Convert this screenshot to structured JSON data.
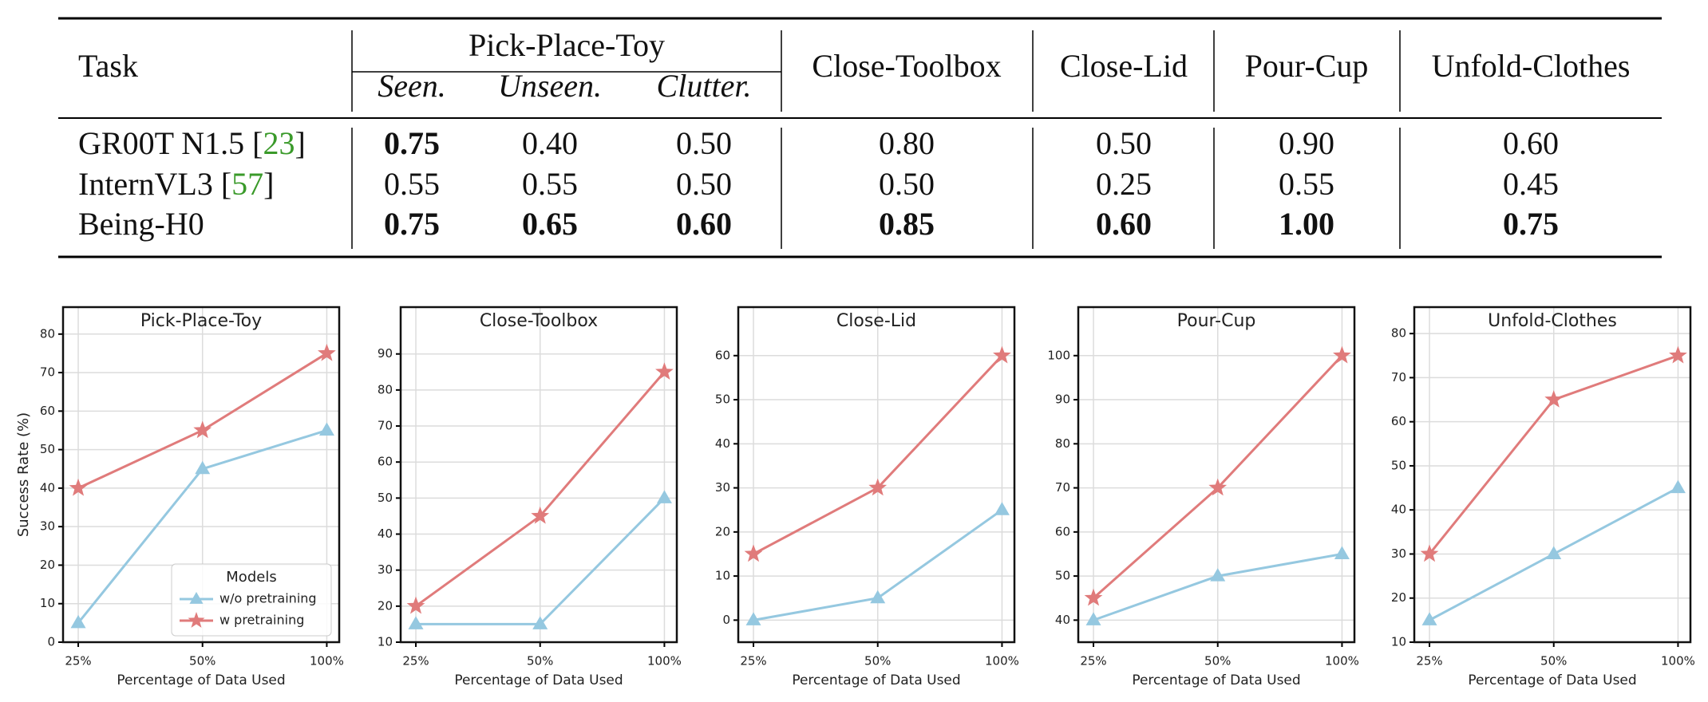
{
  "table": {
    "header": {
      "task": "Task",
      "group": "Pick-Place-Toy",
      "sub": [
        "Seen.",
        "Unseen.",
        "Clutter."
      ],
      "tasks": [
        "Close-Toolbox",
        "Close-Lid",
        "Pour-Cup",
        "Unfold-Clothes"
      ]
    },
    "rows": [
      {
        "model": "GR00T N1.5",
        "cite": [
          "[",
          "23",
          "]"
        ],
        "values": [
          "0.75",
          "0.40",
          "0.50",
          "0.80",
          "0.50",
          "0.90",
          "0.60"
        ],
        "bold": [
          true,
          false,
          false,
          false,
          false,
          false,
          false
        ]
      },
      {
        "model": "InternVL3",
        "cite": [
          "[",
          "57",
          "]"
        ],
        "values": [
          "0.55",
          "0.55",
          "0.50",
          "0.50",
          "0.25",
          "0.55",
          "0.45"
        ],
        "bold": [
          false,
          false,
          false,
          false,
          false,
          false,
          false
        ]
      },
      {
        "model": "Being-H0",
        "values": [
          "0.75",
          "0.65",
          "0.60",
          "0.85",
          "0.60",
          "1.00",
          "0.75"
        ],
        "bold": [
          true,
          true,
          true,
          true,
          true,
          true,
          true
        ]
      }
    ],
    "cite_color": "#3a9a2a"
  },
  "chart_data": [
    {
      "type": "line",
      "title": "Pick-Place-Toy",
      "xlabel": "Percentage of Data Used",
      "ylabel": "Success Rate (%)",
      "categories": [
        "25%",
        "50%",
        "100%"
      ],
      "ylim": [
        0,
        87
      ],
      "yticks": [
        0,
        10,
        20,
        30,
        40,
        50,
        60,
        70,
        80
      ],
      "grid": true,
      "series": [
        {
          "name": "w/o pretraining",
          "color": "#95c8e0",
          "marker": "triangle",
          "values": [
            5,
            45,
            55
          ]
        },
        {
          "name": "w pretraining",
          "color": "#e07b7b",
          "marker": "star",
          "values": [
            40,
            55,
            75
          ]
        }
      ],
      "legend": {
        "title": "Models",
        "loc": "lower right"
      }
    },
    {
      "type": "line",
      "title": "Close-Toolbox",
      "xlabel": "Percentage of Data Used",
      "categories": [
        "25%",
        "50%",
        "100%"
      ],
      "ylim": [
        10,
        103
      ],
      "yticks": [
        10,
        20,
        30,
        40,
        50,
        60,
        70,
        80,
        90
      ],
      "grid": true,
      "series": [
        {
          "color": "#95c8e0",
          "marker": "triangle",
          "values": [
            15,
            15,
            50
          ]
        },
        {
          "color": "#e07b7b",
          "marker": "star",
          "values": [
            20,
            45,
            85
          ]
        }
      ]
    },
    {
      "type": "line",
      "title": "Close-Lid",
      "xlabel": "Percentage of Data Used",
      "categories": [
        "25%",
        "50%",
        "100%"
      ],
      "ylim": [
        -5,
        71
      ],
      "yticks": [
        0,
        10,
        20,
        30,
        40,
        50,
        60
      ],
      "grid": true,
      "series": [
        {
          "color": "#95c8e0",
          "marker": "triangle",
          "values": [
            0,
            5,
            25
          ]
        },
        {
          "color": "#e07b7b",
          "marker": "star",
          "values": [
            15,
            30,
            60
          ]
        }
      ]
    },
    {
      "type": "line",
      "title": "Pour-Cup",
      "xlabel": "Percentage of Data Used",
      "categories": [
        "25%",
        "50%",
        "100%"
      ],
      "ylim": [
        35,
        111
      ],
      "yticks": [
        40,
        50,
        60,
        70,
        80,
        90,
        100
      ],
      "grid": true,
      "series": [
        {
          "color": "#95c8e0",
          "marker": "triangle",
          "values": [
            40,
            50,
            55
          ]
        },
        {
          "color": "#e07b7b",
          "marker": "star",
          "values": [
            45,
            70,
            100
          ]
        }
      ]
    },
    {
      "type": "line",
      "title": "Unfold-Clothes",
      "xlabel": "Percentage of Data Used",
      "categories": [
        "25%",
        "50%",
        "100%"
      ],
      "ylim": [
        10,
        86
      ],
      "yticks": [
        10,
        20,
        30,
        40,
        50,
        60,
        70,
        80
      ],
      "grid": true,
      "series": [
        {
          "color": "#95c8e0",
          "marker": "triangle",
          "values": [
            15,
            30,
            45
          ]
        },
        {
          "color": "#e07b7b",
          "marker": "star",
          "values": [
            30,
            65,
            75
          ]
        }
      ]
    }
  ]
}
